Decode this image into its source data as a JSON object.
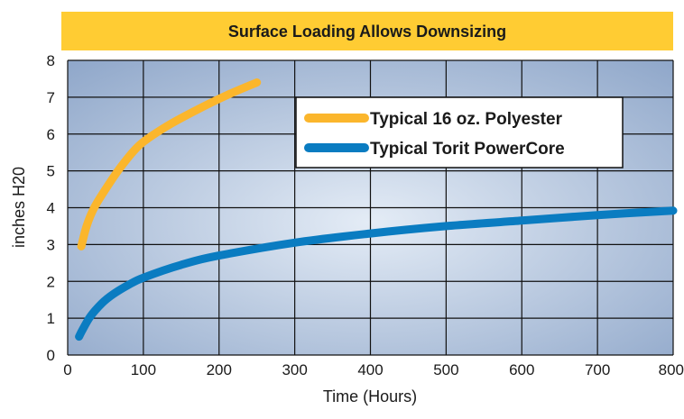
{
  "chart_data": {
    "type": "line",
    "title": "Surface Loading Allows Downsizing",
    "xlabel": "Time (Hours)",
    "ylabel": "inches H20",
    "xlim": [
      0,
      800
    ],
    "ylim": [
      0,
      8
    ],
    "x_ticks": [
      0,
      100,
      200,
      300,
      400,
      500,
      600,
      700,
      800
    ],
    "y_ticks": [
      0,
      1,
      2,
      3,
      4,
      5,
      6,
      7,
      8
    ],
    "x_tick_labels": [
      "0",
      "100",
      "200",
      "300",
      "400",
      "500",
      "600",
      "700",
      "800"
    ],
    "y_tick_labels": [
      "0",
      "1",
      "2",
      "3",
      "4",
      "5",
      "6",
      "7",
      "8"
    ],
    "grid": true,
    "legend_position": "top-right",
    "colors": {
      "title_bar": "#ffcc33",
      "plot_center": "#e4ecf6",
      "plot_edge": "#8ea6c9",
      "grid": "#111111"
    },
    "series": [
      {
        "name": "Typical 16 oz. Polyester",
        "color": "#fbb62c",
        "x": [
          18,
          25,
          35,
          50,
          70,
          95,
          130,
          170,
          210,
          250
        ],
        "y": [
          2.95,
          3.5,
          4.0,
          4.5,
          5.1,
          5.7,
          6.2,
          6.65,
          7.05,
          7.4
        ]
      },
      {
        "name": "Typical Torit PowerCore",
        "color": "#0a7cc1",
        "x": [
          15,
          20,
          30,
          45,
          60,
          80,
          100,
          150,
          200,
          300,
          400,
          500,
          600,
          700,
          800
        ],
        "y": [
          0.5,
          0.7,
          1.05,
          1.4,
          1.65,
          1.9,
          2.1,
          2.45,
          2.7,
          3.05,
          3.3,
          3.5,
          3.65,
          3.8,
          3.92
        ]
      }
    ]
  }
}
